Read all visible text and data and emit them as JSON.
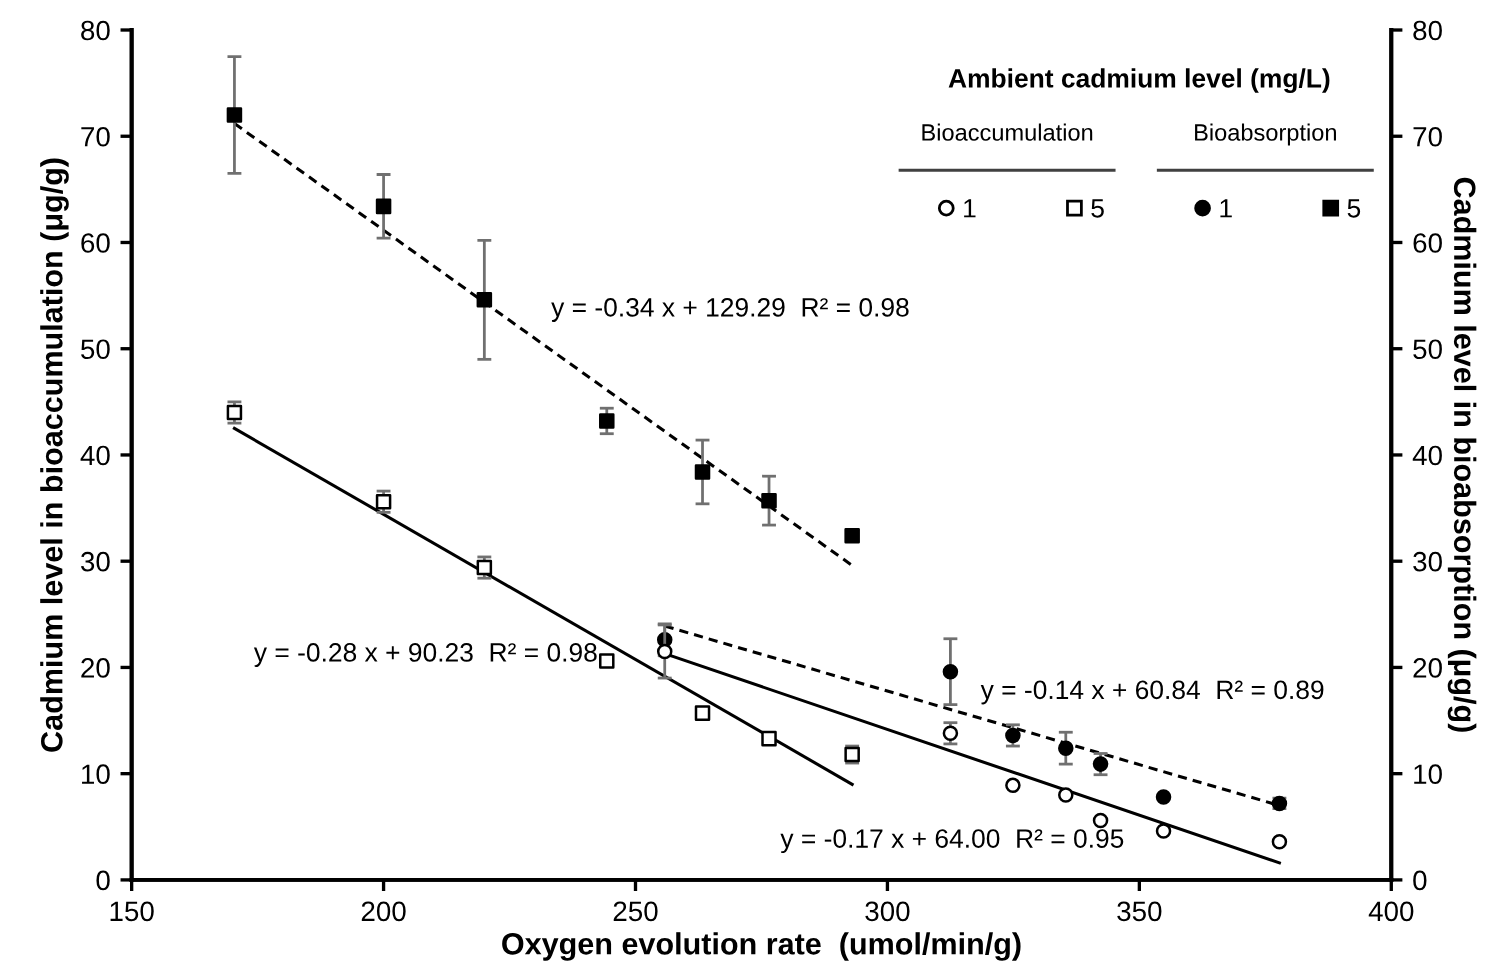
{
  "chart_data": {
    "type": "scatter",
    "xlabel": "Oxygen evolution rate  (umol/min/g)",
    "ylabel": "Cadmium level in bioaccumulation (μg/g)",
    "y2label": "Cadmium level in bioabsorption (μg/g)",
    "legend_title": "Ambient cadmium level (mg/L)",
    "xlim": [
      150,
      400
    ],
    "xticks": [
      150,
      200,
      250,
      300,
      350,
      400
    ],
    "ylim": [
      0,
      80
    ],
    "yticks": [
      0,
      10,
      20,
      30,
      40,
      50,
      60,
      70,
      80
    ],
    "y2lim": [
      0,
      80
    ],
    "y2ticks": [
      0,
      10,
      20,
      30,
      40,
      50,
      60,
      70,
      80
    ],
    "grid": false,
    "legend": "top right",
    "series": [
      {
        "name": "1",
        "marker": "circle",
        "color": "#ffffff",
        "x": [
          255.8,
          312.5,
          324.9,
          335.4,
          342.3,
          354.8,
          377.8
        ],
        "values": [
          21.5,
          13.8,
          8.9,
          8.0,
          5.6,
          4.6,
          3.6
        ],
        "errors": [
          2.5,
          1,
          null,
          null,
          null,
          null,
          null
        ]
      },
      {
        "name": "5",
        "marker": "square",
        "color": "#ffffff",
        "x": [
          170.4,
          200,
          220,
          244.3,
          263.3,
          276.5,
          293
        ],
        "values": [
          44,
          35.6,
          29.4,
          20.6,
          15.7,
          13.3,
          11.8
        ],
        "errors": [
          1,
          1,
          1,
          null,
          null,
          0.5,
          0.8
        ]
      },
      {
        "name": "1",
        "axis": "y2",
        "marker": "circle",
        "color": "#000000",
        "x": [
          255.8,
          312.5,
          324.9,
          335.4,
          342.3,
          354.8,
          377.8
        ],
        "values": [
          22.6,
          19.6,
          13.6,
          12.4,
          10.9,
          7.8,
          7.2
        ],
        "errors": [
          1.5,
          3.1,
          1,
          1.5,
          1,
          null,
          0.5
        ]
      },
      {
        "name": "5",
        "axis": "y2",
        "marker": "square",
        "color": "#000000",
        "x": [
          170.4,
          200,
          220,
          244.3,
          263.3,
          276.5,
          293
        ],
        "values": [
          72.0,
          63.4,
          54.6,
          43.2,
          38.4,
          35.7,
          32.4
        ],
        "errors": [
          5.5,
          3,
          5.6,
          1.2,
          3,
          2.3,
          0.5
        ]
      },
      {
        "type": "line",
        "line_style": "solid",
        "marker": "none",
        "color": "#000000",
        "x": [
          255.8,
          377.8
        ],
        "values": [
          21.3,
          1.6
        ]
      },
      {
        "type": "line",
        "line_style": "solid",
        "marker": "none",
        "color": "#000000",
        "x": [
          170.4,
          293
        ],
        "values": [
          42.5,
          9.0
        ]
      },
      {
        "type": "line",
        "axis": "y2",
        "line_style": "dashed",
        "marker": "none",
        "color": "#000000",
        "x": [
          255.8,
          377.8
        ],
        "values": [
          23.9,
          7.0
        ]
      },
      {
        "type": "line",
        "axis": "y2",
        "line_style": "dashed",
        "marker": "none",
        "color": "#000000",
        "x": [
          170.4,
          293
        ],
        "values": [
          71.2,
          29.6
        ]
      }
    ],
    "annotations": [
      "y = -0.34 x + 129.29  R² = 0.98",
      "y = -0.28 x + 90.23  R² = 0.98",
      "y = -0.14 x + 60.84  R² = 0.89",
      "y = -0.17 x + 64.00  R² = 0.95",
      "Bioaccumulation",
      "Bioabsorption"
    ]
  }
}
